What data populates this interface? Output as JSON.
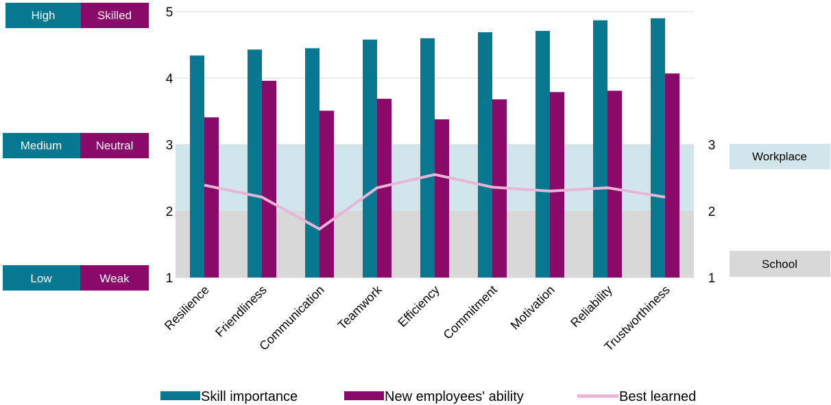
{
  "chart_data": {
    "type": "bar",
    "categories": [
      "Resilience",
      "Friendliness",
      "Communication",
      "Teamwork",
      "Efficiency",
      "Commitment",
      "Motivation",
      "Reliability",
      "Trustworthiness"
    ],
    "series": [
      {
        "name": "Skill importance",
        "kind": "bar",
        "color": "#087891",
        "values": [
          4.34,
          4.43,
          4.45,
          4.58,
          4.6,
          4.69,
          4.71,
          4.87,
          4.9
        ]
      },
      {
        "name": "New employees' ability",
        "kind": "bar",
        "color": "#8a0a6a",
        "values": [
          3.41,
          3.96,
          3.51,
          3.69,
          3.38,
          3.68,
          3.79,
          3.81,
          4.07
        ]
      },
      {
        "name": "Best learned",
        "kind": "line",
        "color": "#e8b5d6",
        "axis": "right",
        "values": [
          2.39,
          2.21,
          1.73,
          2.35,
          2.55,
          2.36,
          2.3,
          2.35,
          2.21
        ]
      }
    ],
    "left_axis": {
      "ticks": [
        "1",
        "2",
        "3",
        "4",
        "5"
      ],
      "ylim": [
        1,
        5
      ]
    },
    "right_axis": {
      "ticks": [
        "1",
        "2",
        "3"
      ],
      "ylim": [
        1,
        3
      ]
    },
    "scale_labels": [
      {
        "importance": "High",
        "ability": "Skilled"
      },
      {
        "importance": "Medium",
        "ability": "Neutral"
      },
      {
        "importance": "Low",
        "ability": "Weak"
      }
    ],
    "zones": [
      {
        "label": "Workplace",
        "color": "#d0e6ec",
        "range": [
          2,
          3
        ]
      },
      {
        "label": "School",
        "color": "#d8d8d8",
        "range": [
          1,
          2
        ]
      }
    ],
    "grid": true,
    "legend": "bottom"
  }
}
